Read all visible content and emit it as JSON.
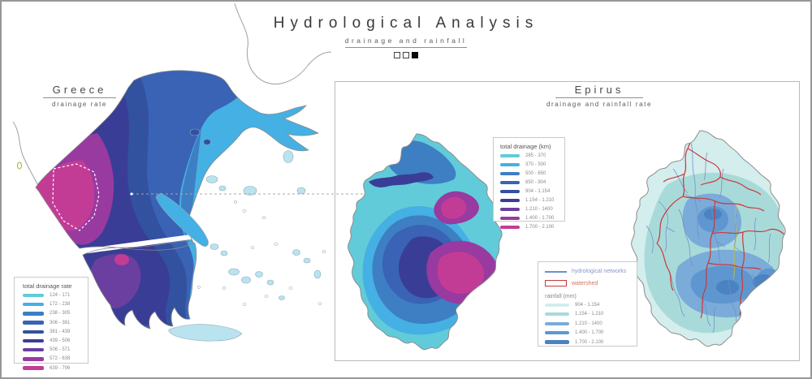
{
  "header": {
    "title": "Hydrological Analysis",
    "subtitle": "drainage and rainfall",
    "page_squares": [
      "outline",
      "outline",
      "filled"
    ]
  },
  "greece_section": {
    "title": "Greece",
    "subtitle": "drainage rate",
    "legend": {
      "title": "total drainage rate",
      "items": [
        "124 - 171",
        "172 - 238",
        "238 - 305",
        "306 - 381",
        "381 - 439",
        "439 - 506",
        "506 - 571",
        "572 - 638",
        "639 - 706"
      ]
    }
  },
  "epirus_section": {
    "title": "Epirus",
    "subtitle": "drainage and rainfall rate",
    "drainage_legend": {
      "title": "total drainage (km)",
      "items": [
        "285 - 370",
        "370 - 500",
        "500 - 650",
        "650 - 904",
        "904 - 1.154",
        "1.154 - 1.210",
        "1.210 - 1400",
        "1.400 - 1.700",
        "1.700 - 2.100"
      ]
    },
    "map_legend": {
      "network_label": "hydrological networks",
      "watershed_label": "watershed",
      "rainfall_title": "rainfall (mm)",
      "rainfall_items": [
        "904 - 1.154",
        "1.154 - 1.210",
        "1.210 - 1400",
        "1.400 - 1.700",
        "1.700 - 2.100"
      ]
    }
  },
  "palette": {
    "drainage": [
      "#62CBD9",
      "#45B0E3",
      "#3E7EC3",
      "#3A62B5",
      "#32519E",
      "#3A3D96",
      "#6A3F9F",
      "#993AA0",
      "#C23C96"
    ],
    "rainfall": [
      "#D4EDED",
      "#A9DADA",
      "#7BABD8",
      "#5E97CF",
      "#4B82C2"
    ],
    "network": "#6E8FC9",
    "watershed": "#CB3838",
    "river_highlight": "#B8B855",
    "coastline": "#8F8F8F"
  }
}
